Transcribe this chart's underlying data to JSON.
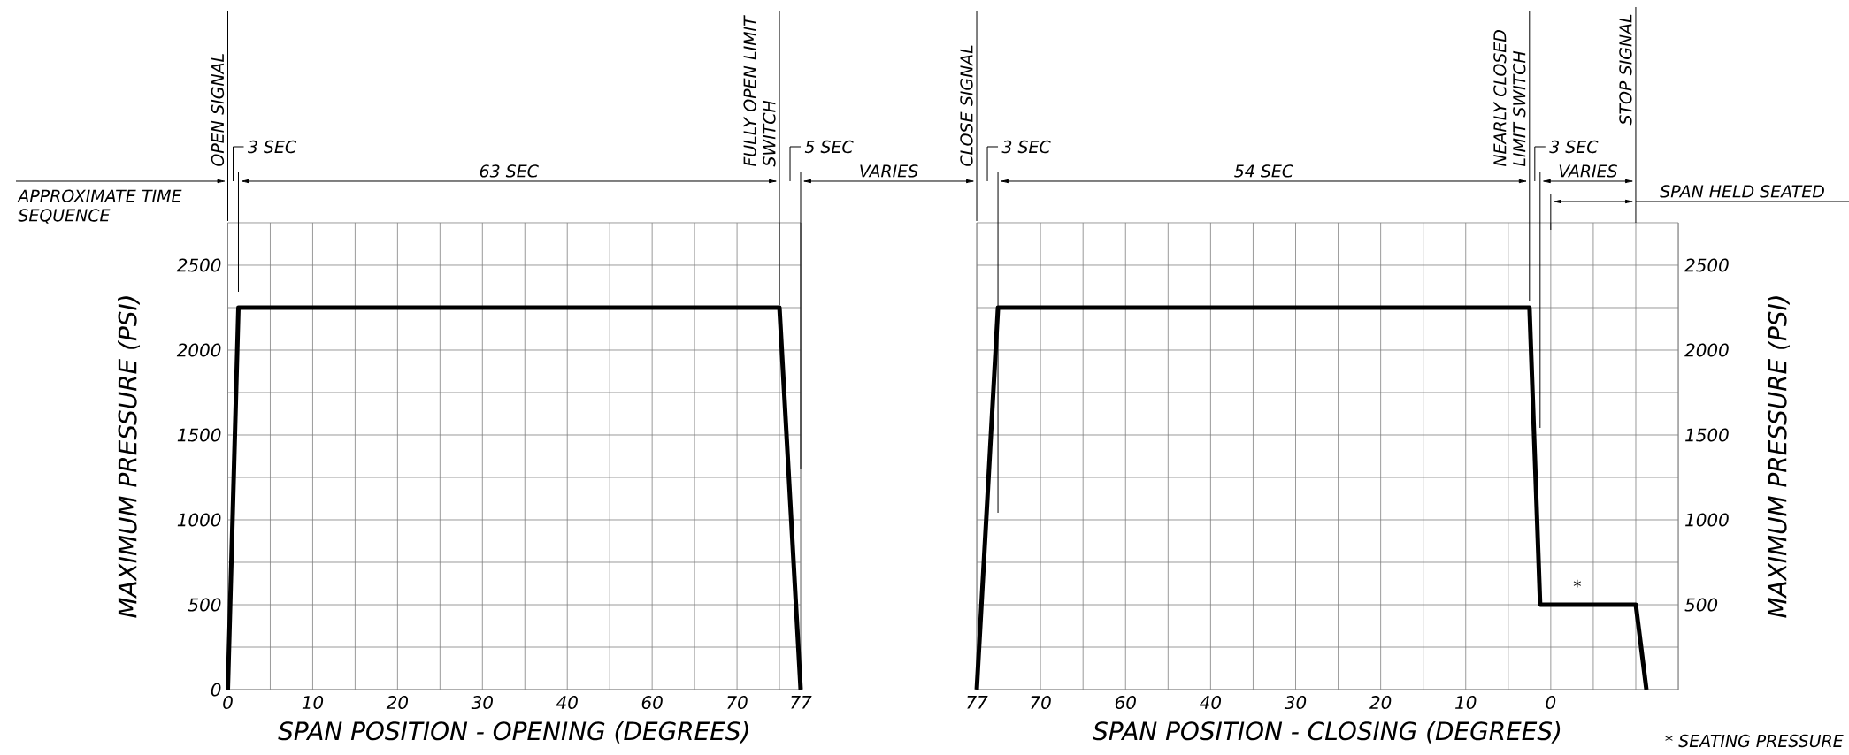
{
  "chart_data": [
    {
      "type": "line",
      "xlabel": "SPAN POSITION - OPENING (DEGREES)",
      "ylabel": "MAXIMUM PRESSURE (PSI)",
      "categories": [
        "0",
        null,
        null,
        null,
        null,
        null,
        null,
        null,
        "10",
        null,
        null,
        null,
        null,
        null,
        null,
        null,
        "20",
        null,
        null,
        null,
        null,
        null,
        null,
        null,
        "30",
        null,
        null,
        null,
        null,
        null,
        null,
        null,
        "40",
        null,
        null,
        null,
        null,
        null,
        null,
        null,
        "60",
        null,
        null,
        null,
        null,
        null,
        null,
        null,
        "70",
        null,
        null,
        null,
        null,
        null,
        "77"
      ],
      "ylim": [
        0,
        2750
      ],
      "yticks": [
        0,
        {
          "value": 250,
          "label": null
        },
        500,
        {
          "value": 750,
          "label": null
        },
        1000,
        {
          "value": 1250,
          "label": null
        },
        1500,
        {
          "value": 1750,
          "label": null
        },
        2000,
        {
          "value": 2250,
          "label": null
        },
        2500
      ],
      "grid": true,
      "series": [
        {
          "color": "#000000",
          "values": [
            0,
            2250,
            2250,
            2250,
            2250,
            2250,
            2250,
            2250,
            2250,
            2250,
            2250,
            2250,
            2250,
            2250,
            2250,
            2250,
            2250,
            2250,
            2250,
            2250,
            2250,
            2250,
            2250,
            2250,
            2250,
            2250,
            2250,
            2250,
            2250,
            2250,
            2250,
            2250,
            2250,
            2250,
            2250,
            2250,
            2250,
            2250,
            2250,
            2250,
            2250,
            2250,
            2250,
            2250,
            2250,
            2250,
            2250,
            2250,
            2250,
            2250,
            2250,
            2250,
            2250,
            1125,
            0
          ]
        }
      ],
      "annotations": [
        "OPEN SIGNAL",
        "3 SEC",
        "63 SEC",
        "FULLY OPEN LIMIT SWITCH",
        "5 SEC",
        "VARIES",
        "APPROXIMATE TIME SEQUENCE"
      ]
    },
    {
      "type": "line",
      "xlabel": "SPAN POSITION - CLOSING (DEGREES)",
      "y2label": "MAXIMUM PRESSURE (PSI)",
      "categories": [
        "77",
        null,
        null,
        null,
        null,
        null,
        "70",
        null,
        null,
        null,
        null,
        null,
        null,
        null,
        "60",
        null,
        null,
        null,
        null,
        null,
        null,
        null,
        "40",
        null,
        null,
        null,
        null,
        null,
        null,
        null,
        "30",
        null,
        null,
        null,
        null,
        null,
        null,
        null,
        "20",
        null,
        null,
        null,
        null,
        null,
        null,
        null,
        "10",
        null,
        null,
        null,
        null,
        null,
        null,
        null,
        "0",
        null,
        null,
        null,
        null,
        null,
        null,
        null,
        null,
        null,
        null,
        null,
        null
      ],
      "y2lim": [
        0,
        2750
      ],
      "y2ticks": [
        {
          "value": 0,
          "label": null
        },
        {
          "value": 250,
          "label": null
        },
        500,
        {
          "value": 750,
          "label": null
        },
        1000,
        {
          "value": 1250,
          "label": null
        },
        1500,
        {
          "value": 1750,
          "label": null
        },
        2000,
        {
          "value": 2250,
          "label": null
        },
        2500
      ],
      "grid": true,
      "series": [
        {
          "color": "#000000",
          "axis": "y2",
          "values": [
            0,
            1125,
            2250,
            2250,
            2250,
            2250,
            2250,
            2250,
            2250,
            2250,
            2250,
            2250,
            2250,
            2250,
            2250,
            2250,
            2250,
            2250,
            2250,
            2250,
            2250,
            2250,
            2250,
            2250,
            2250,
            2250,
            2250,
            2250,
            2250,
            2250,
            2250,
            2250,
            2250,
            2250,
            2250,
            2250,
            2250,
            2250,
            2250,
            2250,
            2250,
            2250,
            2250,
            2250,
            2250,
            2250,
            2250,
            2250,
            2250,
            2250,
            2250,
            2250,
            2250,
            500,
            500,
            500,
            500,
            500,
            500,
            500,
            500,
            500,
            500,
            0,
            null,
            null,
            null
          ]
        }
      ],
      "annotations": [
        "CLOSE SIGNAL",
        "3 SEC",
        "54 SEC",
        "NEARLY CLOSED LIMIT SWITCH",
        "3 SEC",
        "VARIES",
        "STOP SIGNAL",
        "SPAN HELD SEATED",
        "*",
        "* SEATING PRESSURE"
      ]
    }
  ]
}
